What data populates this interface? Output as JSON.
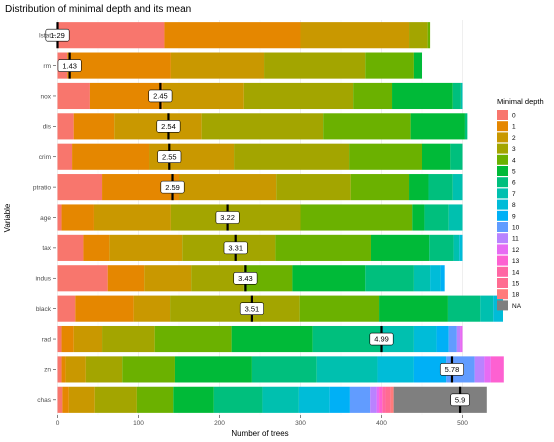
{
  "chart_data": {
    "type": "bar",
    "orientation": "horizontal",
    "stacked": true,
    "title": "Distribution of minimal depth and its mean",
    "xlabel": "Number of trees",
    "ylabel": "Variable",
    "xlim": [
      0,
      500
    ],
    "xticks": [
      0,
      100,
      200,
      300,
      400,
      500
    ],
    "grid": true,
    "legend_position": "right",
    "legend_title": "Minimal depth",
    "levels": [
      "0",
      "1",
      "2",
      "3",
      "4",
      "5",
      "6",
      "7",
      "8",
      "9",
      "10",
      "11",
      "12",
      "13",
      "14",
      "15",
      "18",
      "NA"
    ],
    "colors": [
      "#F8766D",
      "#E58700",
      "#C99800",
      "#A3A500",
      "#6BB100",
      "#00BA38",
      "#00BF7D",
      "#00C0AF",
      "#00BCD8",
      "#00B0F6",
      "#619CFF",
      "#B983FF",
      "#E76BF3",
      "#FD61D1",
      "#FF67A4",
      "#FF6C91",
      "#FF7B7B",
      "#7F7F7F"
    ],
    "variables": [
      "lstat",
      "rm",
      "nox",
      "dis",
      "crim",
      "ptratio",
      "age",
      "tax",
      "indus",
      "black",
      "rad",
      "zn",
      "chas"
    ],
    "counts": {
      "lstat": [
        132,
        168,
        134,
        23,
        3
      ],
      "rm": [
        12,
        128,
        115,
        125,
        60,
        10
      ],
      "nox": [
        40,
        90,
        100,
        135,
        48,
        75,
        10,
        2
      ],
      "dis": [
        20,
        50,
        108,
        150,
        108,
        67,
        3
      ],
      "crim": [
        18,
        95,
        105,
        142,
        90,
        35,
        15
      ],
      "ptratio": [
        55,
        95,
        120,
        92,
        72,
        24,
        30,
        12
      ],
      "age": [
        5,
        40,
        95,
        160,
        138,
        15,
        30,
        17
      ],
      "tax": [
        32,
        32,
        90,
        115,
        118,
        72,
        30,
        7,
        4
      ],
      "indus": [
        62,
        45,
        58,
        65,
        60,
        90,
        60,
        20,
        13,
        5
      ],
      "black": [
        22,
        72,
        45,
        160,
        98,
        85,
        40,
        16,
        12
      ],
      "rad": [
        5,
        15,
        35,
        65,
        95,
        100,
        85,
        40,
        28,
        15,
        10,
        4,
        3
      ],
      "zn": [
        5,
        5,
        25,
        45,
        65,
        95,
        80,
        75,
        45,
        40,
        35,
        12,
        8,
        16
      ],
      "chas": [
        6,
        8,
        32,
        52,
        45,
        50,
        60,
        45,
        38,
        25,
        25,
        8,
        3,
        4,
        4,
        6,
        4,
        115
      ]
    },
    "means": {
      "lstat": 1.29,
      "rm": 1.43,
      "nox": 2.45,
      "dis": 2.54,
      "crim": 2.55,
      "ptratio": 2.59,
      "age": 3.22,
      "tax": 3.31,
      "indus": 3.43,
      "black": 3.51,
      "rad": 4.99,
      "zn": 5.78,
      "chas": 5.9
    },
    "mean_labels": {
      "lstat": "1.29",
      "rm": "1.43",
      "nox": "2.45",
      "dis": "2.54",
      "crim": "2.55",
      "ptratio": "2.59",
      "age": "3.22",
      "tax": "3.31",
      "indus": "3.43",
      "black": "3.51",
      "rad": "4.99",
      "zn": "5.78",
      "chas": "5.9"
    },
    "mean_line_positions": {
      "lstat": 0,
      "rm": 15,
      "nox": 127,
      "dis": 137,
      "crim": 138,
      "ptratio": 142,
      "age": 210,
      "tax": 220,
      "indus": 232,
      "black": 240,
      "rad": 400,
      "zn": 487,
      "chas": 497
    }
  }
}
